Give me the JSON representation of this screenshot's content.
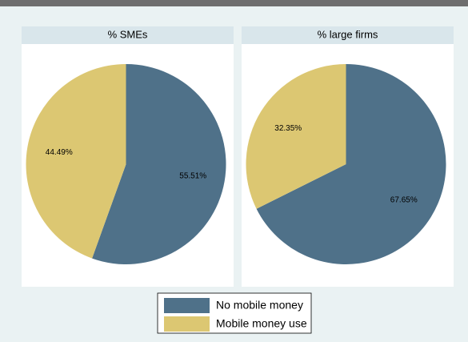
{
  "chart_data": [
    {
      "type": "pie",
      "title": "% SMEs",
      "categories": [
        "No mobile money",
        "Mobile money use"
      ],
      "values": [
        55.51,
        44.49
      ],
      "value_labels": [
        "55.51%",
        "44.49%"
      ],
      "colors": [
        "#4f7189",
        "#dcc772"
      ]
    },
    {
      "type": "pie",
      "title": "% large firms",
      "categories": [
        "No mobile money",
        "Mobile money use"
      ],
      "values": [
        67.65,
        32.35
      ],
      "value_labels": [
        "67.65%",
        "32.35%"
      ],
      "colors": [
        "#4f7189",
        "#dcc772"
      ]
    }
  ]
}
